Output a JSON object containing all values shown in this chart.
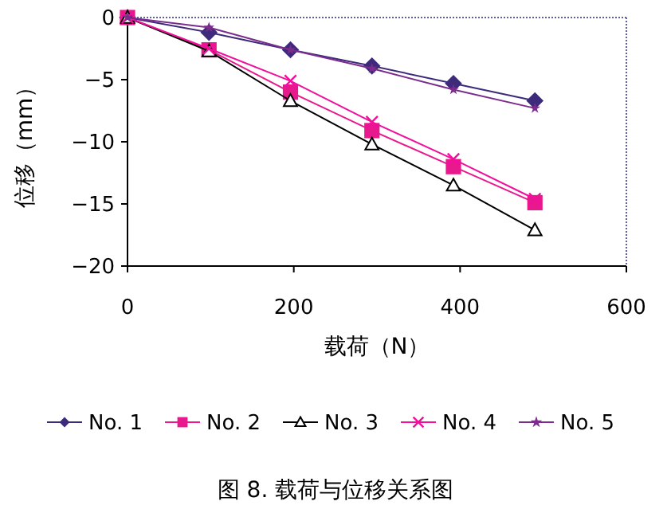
{
  "chart_data": {
    "type": "line",
    "title": "图 8. 载荷与位移关系图",
    "xlabel": "载荷（N）",
    "ylabel": "位移（mm）",
    "x": [
      0,
      98,
      196,
      294,
      392,
      490
    ],
    "xlim": [
      0,
      600
    ],
    "xticks": [
      0,
      200,
      400,
      600
    ],
    "ylim": [
      -20,
      0
    ],
    "yticks": [
      -20,
      -15,
      -10,
      -5,
      0
    ],
    "legend": "bottom",
    "grid": false,
    "series": [
      {
        "name": "No. 1",
        "color": "#3d2a7a",
        "marker": "diamond",
        "values": [
          0,
          -1.2,
          -2.6,
          -3.9,
          -5.3,
          -6.7
        ]
      },
      {
        "name": "No. 2",
        "color": "#e8198c",
        "marker": "square",
        "values": [
          0,
          -2.6,
          -6.0,
          -9.1,
          -12.0,
          -14.9
        ]
      },
      {
        "name": "No. 3",
        "color": "#000000",
        "marker": "triangle",
        "values": [
          0,
          -2.7,
          -6.7,
          -10.2,
          -13.5,
          -17.1
        ]
      },
      {
        "name": "No. 4",
        "color": "#f0109c",
        "marker": "cross",
        "values": [
          0,
          -2.5,
          -5.1,
          -8.4,
          -11.4,
          -14.6
        ]
      },
      {
        "name": "No. 5",
        "color": "#7b2c8c",
        "marker": "star",
        "values": [
          0,
          -0.8,
          -2.6,
          -4.1,
          -5.8,
          -7.3
        ]
      }
    ]
  }
}
